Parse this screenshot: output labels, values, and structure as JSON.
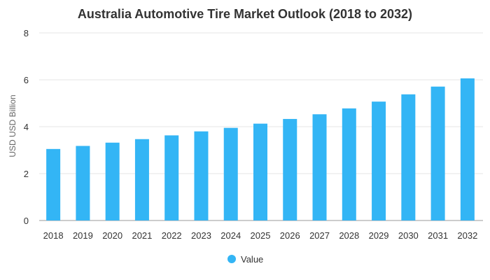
{
  "colors": {
    "bar": "#33b5f5",
    "grid": "#e6e6e6",
    "axis": "#999999"
  },
  "chart_data": {
    "type": "bar",
    "title": "Australia Automotive Tire Market Outlook (2018 to 2032)",
    "xlabel": "",
    "ylabel": "USD USD Billion",
    "ylim": [
      0,
      8
    ],
    "yticks": [
      0,
      2,
      4,
      6,
      8
    ],
    "grid": true,
    "legend_position": "bottom",
    "categories": [
      "2018",
      "2019",
      "2020",
      "2021",
      "2022",
      "2023",
      "2024",
      "2025",
      "2026",
      "2027",
      "2028",
      "2029",
      "2030",
      "2031",
      "2032"
    ],
    "series": [
      {
        "name": "Value",
        "values": [
          3.05,
          3.18,
          3.32,
          3.47,
          3.63,
          3.8,
          3.95,
          4.13,
          4.33,
          4.53,
          4.78,
          5.07,
          5.38,
          5.71,
          6.06
        ]
      }
    ]
  }
}
